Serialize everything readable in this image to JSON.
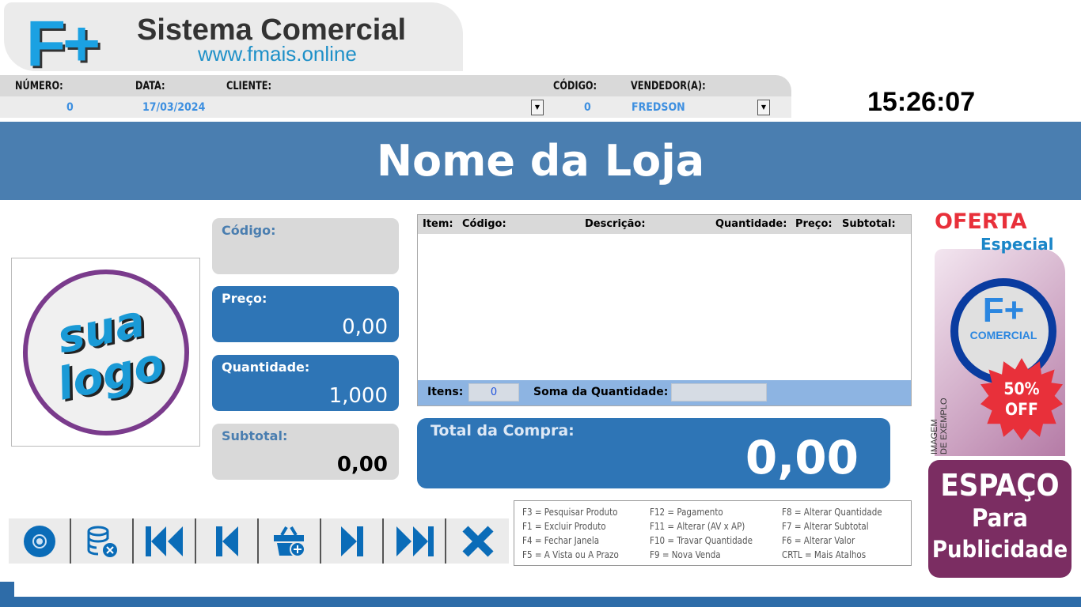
{
  "brand": {
    "logo_text": "F+",
    "title": "Sistema Comercial",
    "url": "www.fmais.online"
  },
  "header": {
    "labels": {
      "numero": "NÚMERO:",
      "data": "DATA:",
      "cliente": "CLIENTE:",
      "codigo": "CÓDIGO:",
      "vendedor": "VENDEDOR(A):"
    },
    "values": {
      "numero": "0",
      "data": "17/03/2024",
      "cliente": "",
      "codigo": "0",
      "vendedor": "FREDSON"
    }
  },
  "clock": "15:26:07",
  "store_name": "Nome da Loja",
  "store_logo": {
    "line1": "sua",
    "line2": "logo"
  },
  "fields": {
    "codigo": {
      "label": "Código:",
      "value": ""
    },
    "preco": {
      "label": "Preço:",
      "value": "0,00"
    },
    "quantidade": {
      "label": "Quantidade:",
      "value": "1,000"
    },
    "subtotal": {
      "label": "Subtotal:",
      "value": "0,00"
    }
  },
  "colors": {
    "primary": "#2e75b6",
    "banner": "#4a7eb0",
    "ad_purple": "#7b2d62",
    "offer_red": "#e8303a"
  },
  "items_table": {
    "columns": [
      "Item:",
      "Código:",
      "Descrição:",
      "Quantidade:",
      "Preço:",
      "Subtotal:"
    ],
    "rows": [],
    "footer": {
      "itens_label": "Itens:",
      "itens_value": "0",
      "soma_label": "Soma da Quantidade:",
      "soma_value": ""
    }
  },
  "total": {
    "label": "Total da Compra:",
    "value": "0,00"
  },
  "toolbar": [
    {
      "icon": "disc-icon",
      "name": "disc"
    },
    {
      "icon": "database-delete-icon",
      "name": "database-delete"
    },
    {
      "icon": "first-record-icon",
      "name": "first"
    },
    {
      "icon": "previous-record-icon",
      "name": "previous"
    },
    {
      "icon": "basket-add-icon",
      "name": "basket-add"
    },
    {
      "icon": "next-record-icon",
      "name": "next"
    },
    {
      "icon": "last-record-icon",
      "name": "last"
    },
    {
      "icon": "close-icon",
      "name": "close"
    }
  ],
  "shortcuts": [
    [
      "F3 = Pesquisar Produto",
      "F1 = Excluir Produto",
      "F4 = Fechar Janela",
      "F5 = A Vista ou A Prazo"
    ],
    [
      "F12 = Pagamento",
      "F11 = Alterar (AV x AP)",
      "F10 = Travar Quantidade",
      "F9 = Nova Venda"
    ],
    [
      "F8 = Alterar Quantidade",
      "F7 = Alterar Subtotal",
      "F6 = Alterar Valor",
      "CRTL = Mais Atalhos"
    ]
  ],
  "ad": {
    "oferta": "OFERTA",
    "especial": "Especial",
    "badge_logo": "F+",
    "badge_text": "COMERCIAL",
    "discount_pct": "50%",
    "discount_off": "OFF",
    "example_1": "IMAGEM",
    "example_2": "DE EXEMPLO",
    "pub_1": "ESPAÇO",
    "pub_2": "Para",
    "pub_3": "Publicidade"
  }
}
